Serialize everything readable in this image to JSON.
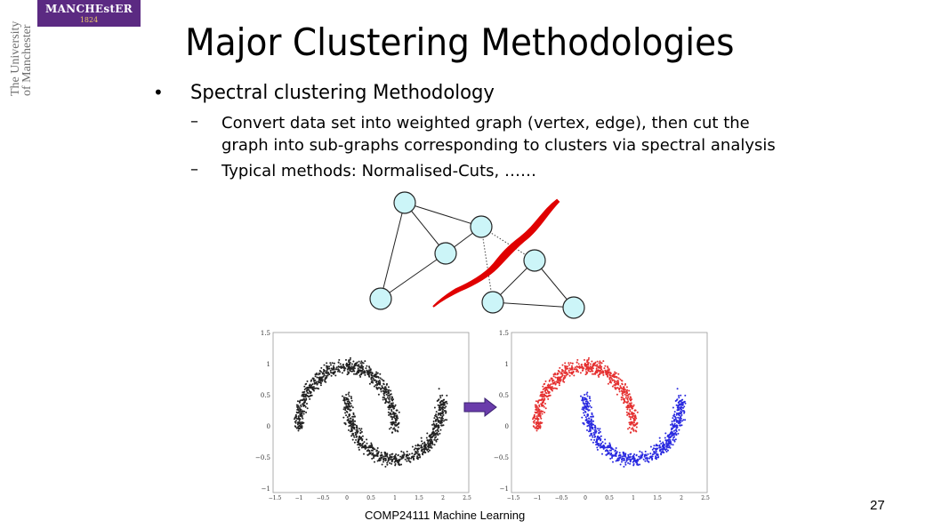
{
  "branding": {
    "logo_text": "MANCHEstER",
    "logo_year": "1824",
    "side_text_1": "The University",
    "side_text_2": "of Manchester",
    "logo_color": "#5b2a82"
  },
  "slide": {
    "title": "Major Clustering Methodologies",
    "bullet_symbol": "•",
    "bullet": "Spectral clustering Methodology",
    "dash_symbol": "–",
    "sub_line_1a": "Convert data set into weighted graph (vertex, edge), then cut the",
    "sub_line_1b": "graph into sub-graphs corresponding to clusters via spectral analysis",
    "sub_line_2": "Typical methods: Normalised-Cuts, ……"
  },
  "figure_colors": {
    "node_fill": "#ccf5f8",
    "cut_line": "#e00000",
    "cluster_1": "#e53030",
    "cluster_2": "#2a2ae0",
    "unclustered": "#222222",
    "arrow": "#6a3cab"
  },
  "plots": {
    "y_ticks": [
      "1.5",
      "1",
      "0.5",
      "0",
      "−0.5",
      "−1"
    ],
    "x_ticks": [
      "−1.5",
      "−1",
      "−0.5",
      "0",
      "0.5",
      "1",
      "1.5",
      "2",
      "2.5"
    ]
  },
  "footer": {
    "course": "COMP24111  Machine Learning",
    "page_number": "27"
  }
}
